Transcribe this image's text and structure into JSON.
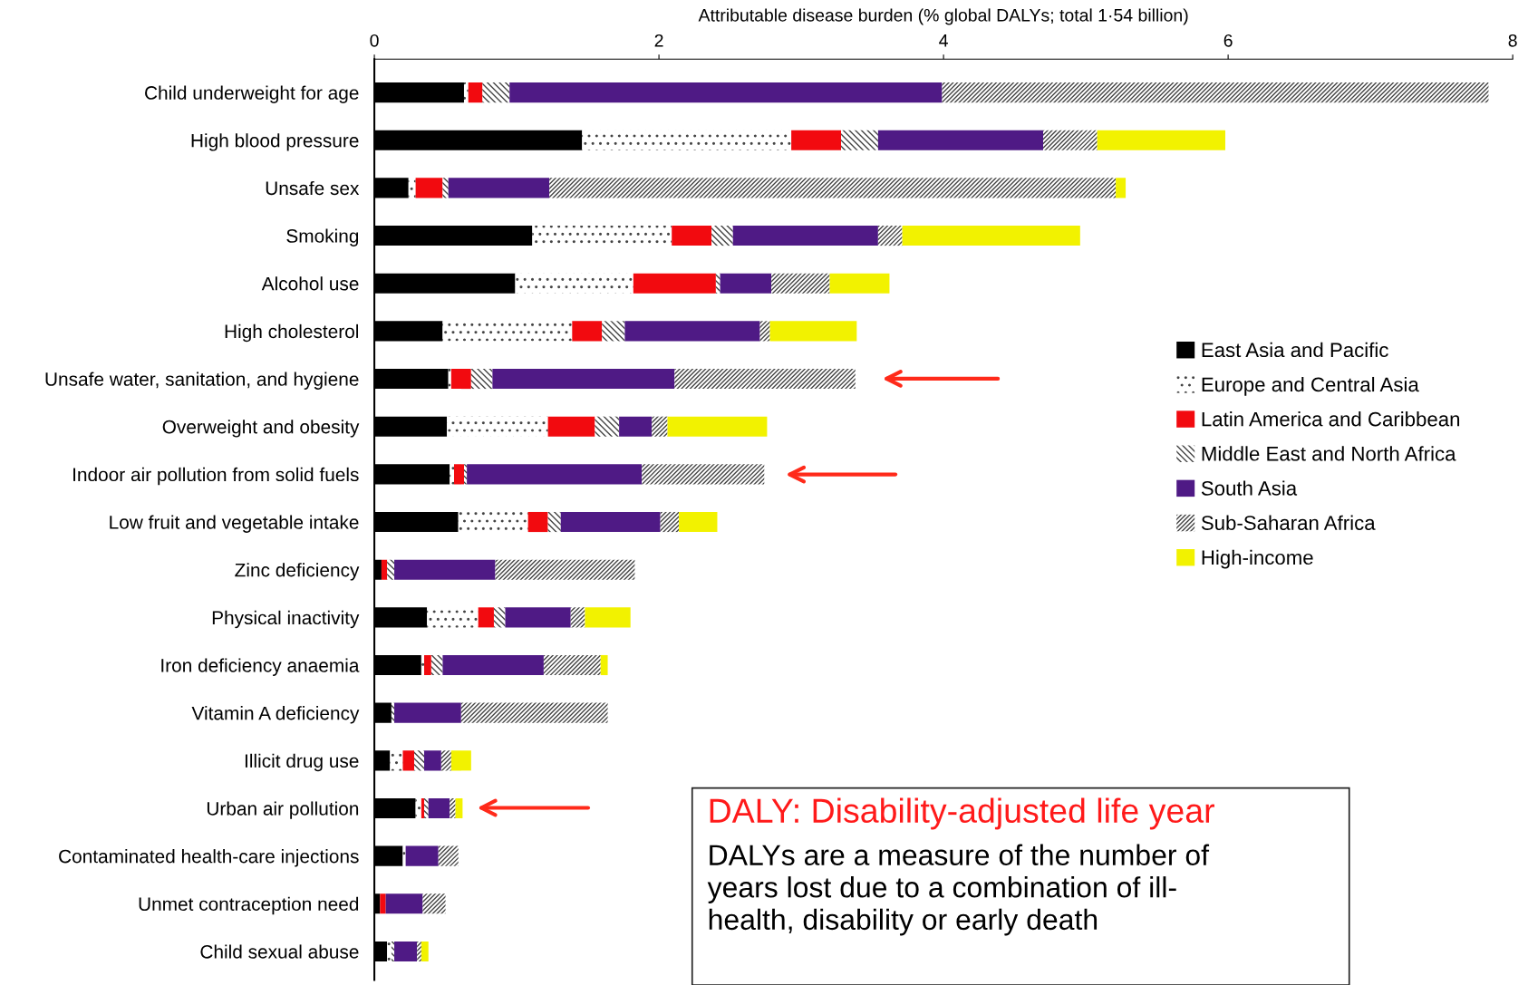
{
  "chart_data": {
    "type": "bar",
    "orientation": "horizontal",
    "stacked": true,
    "xlabel": "Attributable disease burden (% global DALYs; total 1·54 billion)",
    "categories": [
      "Child underweight for age",
      "High blood pressure",
      "Unsafe sex",
      "Smoking",
      "Alcohol use",
      "High cholesterol",
      "Unsafe water, sanitation, and hygiene",
      "Overweight and obesity",
      "Indoor air pollution from solid fuels",
      "Low fruit and vegetable intake",
      "Zinc deficiency",
      "Physical inactivity",
      "Iron deficiency anaemia",
      "Vitamin A deficiency",
      "Illicit drug use",
      "Urban air pollution",
      "Contaminated health-care injections",
      "Unmet contraception need",
      "Child sexual abuse"
    ],
    "series": [
      {
        "name": "East Asia and Pacific",
        "color": "#000000",
        "values": [
          0.63,
          1.46,
          0.24,
          1.11,
          0.99,
          0.48,
          0.52,
          0.51,
          0.53,
          0.59,
          0.05,
          0.37,
          0.33,
          0.12,
          0.11,
          0.29,
          0.2,
          0.04,
          0.09
        ]
      },
      {
        "name": "Europe and Central Asia",
        "color": "#ffffff",
        "values": [
          0.03,
          1.47,
          0.05,
          0.98,
          0.83,
          0.91,
          0.02,
          0.71,
          0.03,
          0.49,
          null,
          0.36,
          0.02,
          null,
          0.09,
          0.04,
          0.02,
          null,
          0.03
        ]
      },
      {
        "name": "Latin America and Caribbean",
        "color": "#f20a0f",
        "values": [
          0.1,
          0.35,
          0.19,
          0.28,
          0.58,
          0.21,
          0.14,
          0.33,
          0.07,
          0.14,
          0.04,
          0.11,
          0.05,
          null,
          0.08,
          0.02,
          null,
          0.04,
          null
        ]
      },
      {
        "name": "Middle East and North Africa",
        "color": "#ffffff",
        "values": [
          0.19,
          0.26,
          0.04,
          0.15,
          0.03,
          0.16,
          0.15,
          0.17,
          0.02,
          0.09,
          0.05,
          0.08,
          0.08,
          0.02,
          0.07,
          0.03,
          null,
          null,
          0.02
        ]
      },
      {
        "name": "South Asia",
        "color": "#4f1a85",
        "values": [
          3.04,
          1.16,
          0.71,
          1.02,
          0.36,
          0.95,
          1.28,
          0.23,
          1.23,
          0.7,
          0.71,
          0.46,
          0.71,
          0.47,
          0.12,
          0.15,
          0.23,
          0.26,
          0.16
        ]
      },
      {
        "name": "Sub-Saharan Africa",
        "color": "#ffffff",
        "values": [
          3.84,
          0.38,
          3.98,
          0.17,
          0.41,
          0.07,
          1.27,
          0.11,
          0.86,
          0.13,
          0.98,
          0.1,
          0.4,
          1.03,
          0.07,
          0.04,
          0.14,
          0.16,
          0.03
        ]
      },
      {
        "name": "High-income",
        "color": "#f2f200",
        "values": [
          null,
          0.9,
          0.07,
          1.25,
          0.42,
          0.61,
          null,
          0.7,
          null,
          0.27,
          null,
          0.32,
          0.05,
          null,
          0.14,
          0.05,
          null,
          null,
          0.05
        ]
      }
    ],
    "xlim": [
      0,
      8
    ],
    "xticks": [
      0,
      2,
      4,
      6,
      8
    ],
    "legend": "right",
    "grid": false,
    "annotations": [
      "DALY: Disability-adjusted life year",
      "DALYs are a measure of the number of\nyears lost due to a combination of ill-\nhealth, disability or early death"
    ]
  }
}
